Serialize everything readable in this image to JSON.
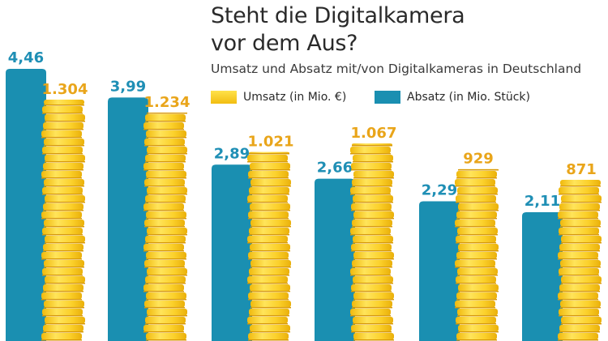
{
  "chart_data": {
    "type": "bar",
    "title": "Steht die Digitalkamera vor dem Aus?",
    "title_lines": [
      "Steht die Digitalkamera",
      "vor dem Aus?"
    ],
    "subtitle": "Umsatz und Absatz mit/von Digitalkameras in Deutschland",
    "categories": [
      "",
      "",
      "",
      "",
      "",
      ""
    ],
    "series": [
      {
        "name": "Absatz (in Mio. Stück)",
        "values": [
          4.46,
          3.99,
          2.89,
          2.66,
          2.29,
          2.11
        ],
        "labels": [
          "4,46",
          "3,99",
          "2,89",
          "2,66",
          "2,29",
          "2,11"
        ],
        "color": "#1a8fb1",
        "label_color": "#1f8fb5"
      },
      {
        "name": "Umsatz (in Mio. €)",
        "values": [
          1304,
          1234,
          1021,
          1067,
          929,
          871
        ],
        "labels": [
          "1.304",
          "1.234",
          "1.021",
          "1.067",
          "929",
          "871"
        ],
        "color": "#f7c81f",
        "label_color": "#e9a51a",
        "style": "coin-stack"
      }
    ],
    "legend": "top-right",
    "grid": false
  }
}
